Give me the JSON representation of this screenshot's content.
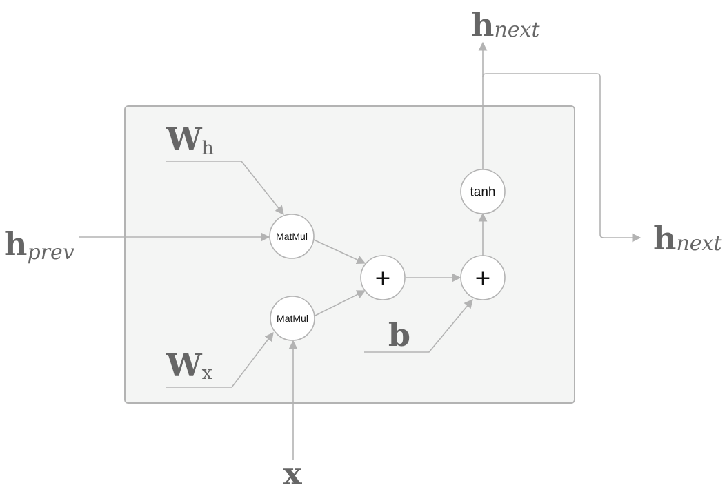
{
  "diagram": {
    "nodes": {
      "matmul_h": {
        "label": "MatMul"
      },
      "matmul_x": {
        "label": "MatMul"
      },
      "add_1": {
        "label": "+"
      },
      "add_2": {
        "label": "+"
      },
      "tanh": {
        "label": "tanh"
      }
    },
    "variables": {
      "w_h": {
        "base": "W",
        "sub": "h"
      },
      "w_x": {
        "base": "W",
        "sub": "x"
      },
      "h_prev": {
        "base": "h",
        "sub": "prev"
      },
      "h_next_top": {
        "base": "h",
        "sub": "next"
      },
      "h_next_right": {
        "base": "h",
        "sub": "next"
      },
      "x": {
        "base": "x"
      },
      "b": {
        "base": "b"
      }
    },
    "colors": {
      "box_fill": "#f4f5f4",
      "box_stroke": "#b3b3b3",
      "wire": "#b3b3b3",
      "label": "#666666"
    }
  }
}
